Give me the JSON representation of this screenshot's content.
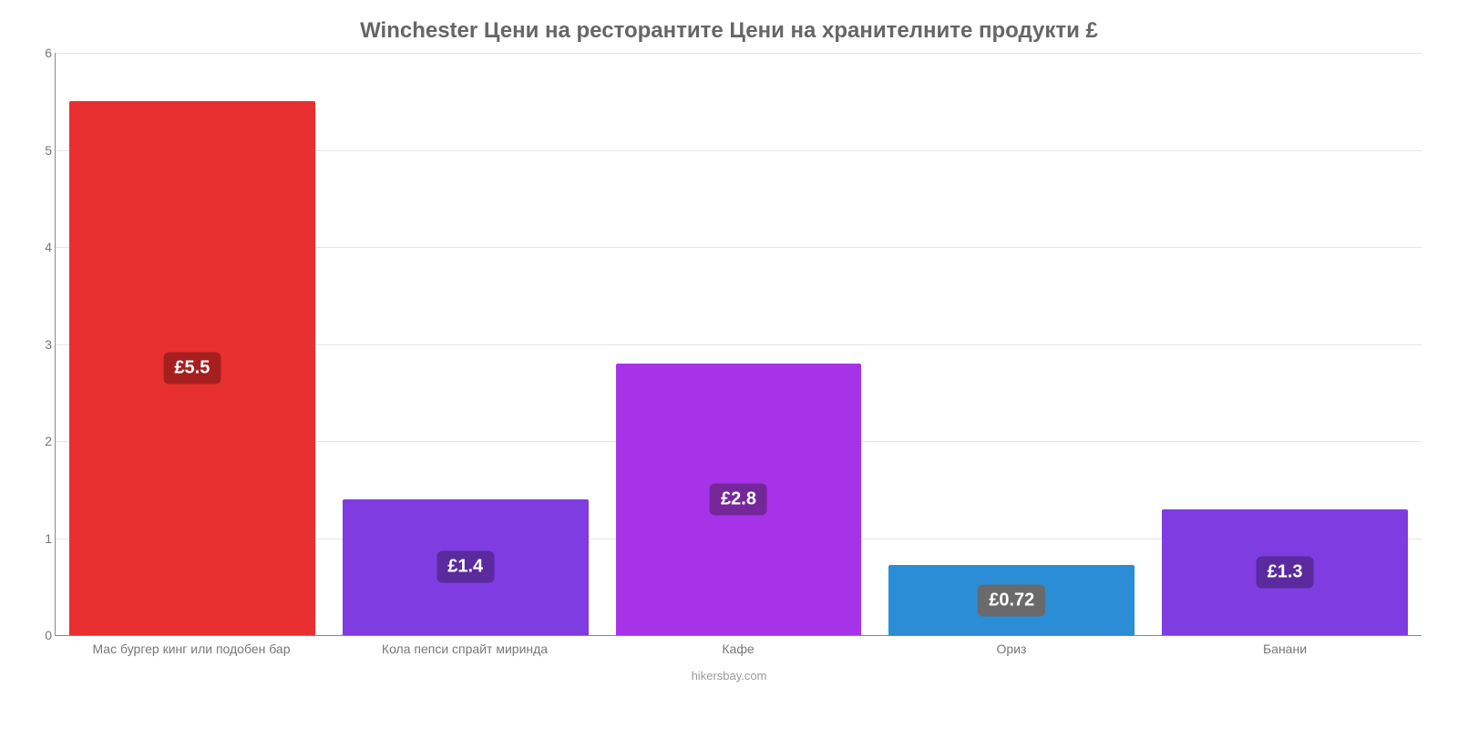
{
  "chart": {
    "type": "bar",
    "title": "Winchester Цени на ресторантите Цени на хранителните продукти £",
    "title_color": "#666666",
    "title_fontsize": 24,
    "background_color": "#ffffff",
    "grid_color": "#e5e5e5",
    "axis_color": "#888888",
    "tick_color": "#777777",
    "ylim": [
      0,
      6
    ],
    "yticks": [
      0,
      1,
      2,
      3,
      4,
      5,
      6
    ],
    "bar_width": 0.9,
    "categories": [
      "Мас бургер кинг или подобен бар",
      "Кола пепси спрайт миринда",
      "Кафе",
      "Ориз",
      "Банани"
    ],
    "values": [
      5.5,
      1.4,
      2.8,
      0.72,
      1.3
    ],
    "value_labels": [
      "£5.5",
      "£1.4",
      "£2.8",
      "£0.72",
      "£1.3"
    ],
    "bar_colors": [
      "#e7302f",
      "#7f3ce0",
      "#a733e8",
      "#2a8dd6",
      "#7f3ce0"
    ],
    "label_bg_colors": [
      "#a61f1f",
      "#5a2a9e",
      "#752799",
      "#6a6a6a",
      "#5a2a9e"
    ],
    "label_text_color": "#ffffff",
    "label_fontsize": 20,
    "xlabel_fontsize": 14,
    "footer": "hikersbay.com",
    "footer_color": "#999999"
  }
}
